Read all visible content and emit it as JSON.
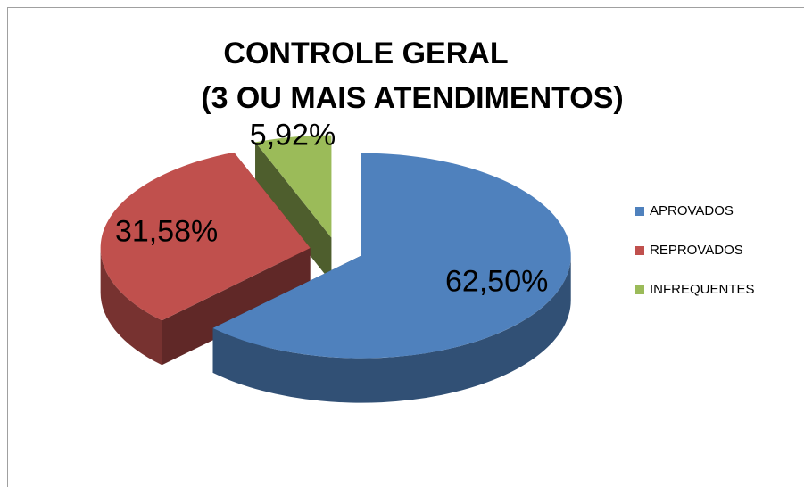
{
  "chart_data": {
    "type": "pie",
    "title": "CONTROLE GERAL",
    "subtitle": "(3 OU MAIS ATENDIMENTOS)",
    "categories": [
      "APROVADOS",
      "REPROVADOS",
      "INFREQUENTES"
    ],
    "values": [
      62.5,
      31.58,
      5.92
    ],
    "value_labels": [
      "62,50%",
      "31,58%",
      "5,92%"
    ],
    "colors": [
      "#4f81bd",
      "#c0504d",
      "#9bbb59"
    ],
    "legend": "right"
  }
}
